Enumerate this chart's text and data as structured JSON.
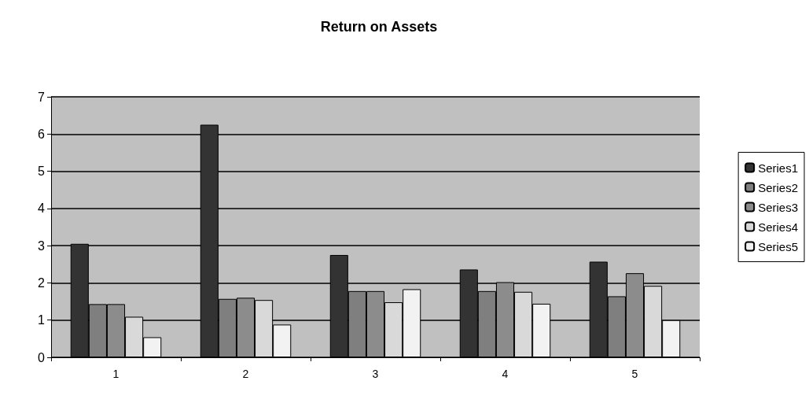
{
  "chart_data": {
    "type": "bar",
    "title": "Return on Assets",
    "categories": [
      "1",
      "2",
      "3",
      "4",
      "5"
    ],
    "series": [
      {
        "name": "Series1",
        "color": "#333333",
        "values": [
          3.05,
          6.25,
          2.75,
          2.36,
          2.57
        ]
      },
      {
        "name": "Series2",
        "color": "#7f7f7f",
        "values": [
          1.43,
          1.57,
          1.78,
          1.78,
          1.64
        ]
      },
      {
        "name": "Series3",
        "color": "#8c8c8c",
        "values": [
          1.43,
          1.6,
          1.78,
          2.02,
          2.26
        ]
      },
      {
        "name": "Series4",
        "color": "#d9d9d9",
        "values": [
          1.09,
          1.54,
          1.48,
          1.76,
          1.92
        ]
      },
      {
        "name": "Series5",
        "color": "#f2f2f2",
        "values": [
          0.54,
          0.88,
          1.83,
          1.44,
          1.0
        ]
      }
    ],
    "ylim": [
      0,
      7
    ],
    "yticks": [
      0,
      1,
      2,
      3,
      4,
      5,
      6,
      7
    ],
    "grid": "y",
    "legend": "right"
  }
}
